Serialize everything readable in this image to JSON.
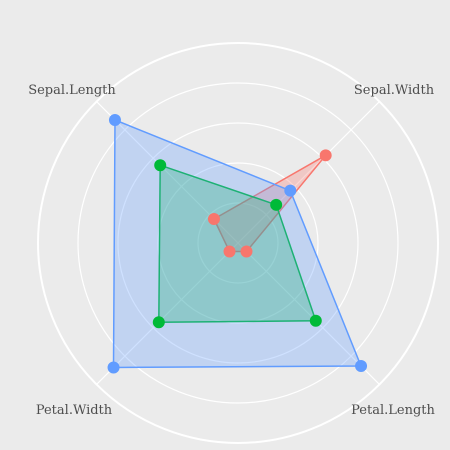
{
  "chart_data": {
    "type": "radar",
    "axes": [
      "Sepal.Length",
      "Sepal.Width",
      "Petal.Length",
      "Petal.Width"
    ],
    "rlim": [
      0,
      1
    ],
    "grid_levels": [
      0.2,
      0.4,
      0.6,
      0.8,
      1.0
    ],
    "grid": true,
    "legend": "none",
    "background": "#ebebeb",
    "series": [
      {
        "color": "#f8766d",
        "values": [
          0.17,
          0.62,
          0.06,
          0.06
        ]
      },
      {
        "color": "#00ba38",
        "values": [
          0.55,
          0.27,
          0.55,
          0.56
        ]
      },
      {
        "color": "#619cff",
        "values": [
          0.87,
          0.37,
          0.87,
          0.88
        ]
      }
    ]
  }
}
